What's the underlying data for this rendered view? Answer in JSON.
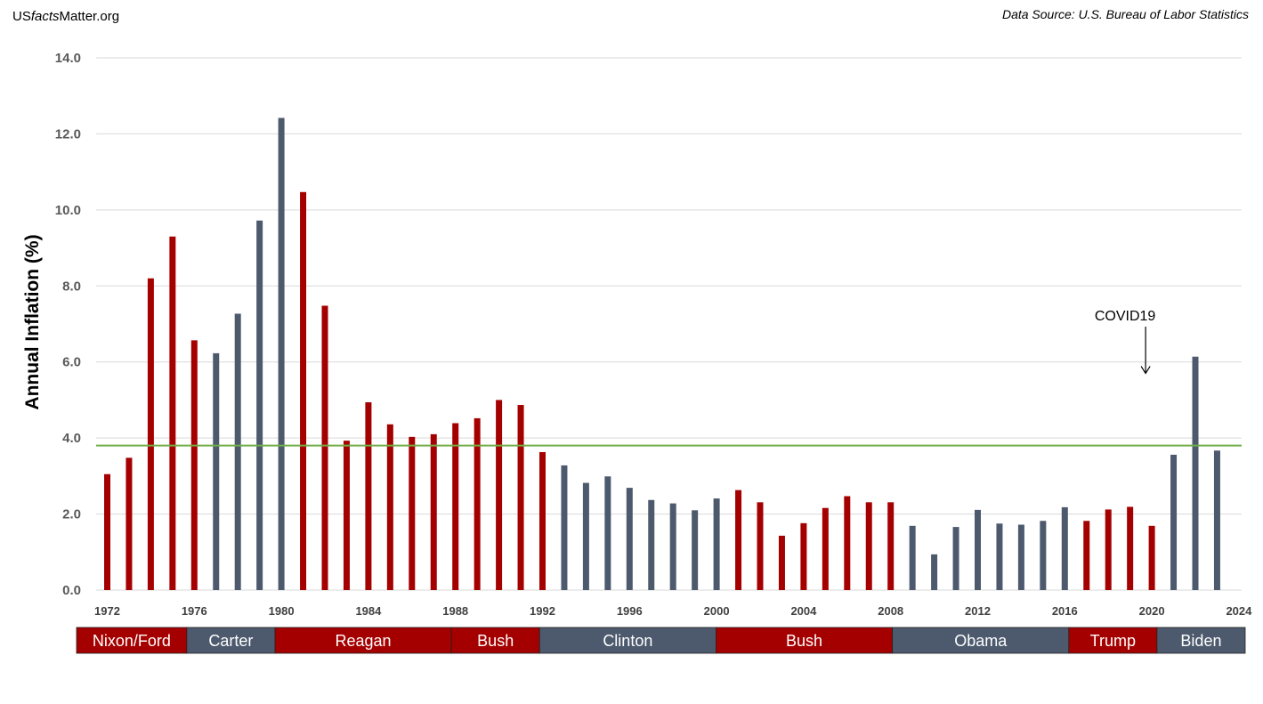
{
  "header": {
    "brand_prefix": "US",
    "brand_italic": "facts",
    "brand_suffix": "Matter.org",
    "source": "Data Source: U.S. Bureau of Labor Statistics"
  },
  "colors": {
    "republican": "#a50000",
    "democrat": "#4d5a6e",
    "reference_line": "#70ad47",
    "grid": "#d9d9d9"
  },
  "chart_data": {
    "type": "bar",
    "ylabel": "Annual Inflation (%)",
    "xlabel": "",
    "ylim": [
      0,
      14
    ],
    "y_ticks": [
      "0.0",
      "2.0",
      "4.0",
      "6.0",
      "8.0",
      "10.0",
      "12.0",
      "14.0"
    ],
    "x_ticks": [
      "1972",
      "1976",
      "1980",
      "1984",
      "1988",
      "1992",
      "1996",
      "2000",
      "2004",
      "2008",
      "2012",
      "2016",
      "2020",
      "2024"
    ],
    "grid": true,
    "categories": [
      1972,
      1973,
      1974,
      1975,
      1976,
      1977,
      1978,
      1979,
      1980,
      1981,
      1982,
      1983,
      1984,
      1985,
      1986,
      1987,
      1988,
      1989,
      1990,
      1991,
      1992,
      1993,
      1994,
      1995,
      1996,
      1997,
      1998,
      1999,
      2000,
      2001,
      2002,
      2003,
      2004,
      2005,
      2006,
      2007,
      2008,
      2009,
      2010,
      2011,
      2012,
      2013,
      2014,
      2015,
      2016,
      2017,
      2018,
      2019,
      2020,
      2021,
      2022,
      2023
    ],
    "values": [
      3.05,
      3.48,
      8.2,
      9.3,
      6.57,
      6.23,
      7.27,
      9.72,
      12.42,
      10.47,
      7.48,
      3.93,
      4.94,
      4.36,
      4.03,
      4.1,
      4.39,
      4.52,
      5.0,
      4.87,
      3.63,
      3.28,
      2.82,
      2.99,
      2.69,
      2.37,
      2.28,
      2.1,
      2.41,
      2.63,
      2.31,
      1.43,
      1.76,
      2.16,
      2.47,
      2.31,
      2.31,
      1.69,
      0.94,
      1.66,
      2.11,
      1.75,
      1.72,
      1.82,
      2.18,
      1.82,
      2.12,
      2.19,
      1.69,
      3.56,
      6.14,
      3.67
    ],
    "party": [
      "R",
      "R",
      "R",
      "R",
      "R",
      "D",
      "D",
      "D",
      "D",
      "R",
      "R",
      "R",
      "R",
      "R",
      "R",
      "R",
      "R",
      "R",
      "R",
      "R",
      "R",
      "D",
      "D",
      "D",
      "D",
      "D",
      "D",
      "D",
      "D",
      "R",
      "R",
      "R",
      "R",
      "R",
      "R",
      "R",
      "R",
      "D",
      "D",
      "D",
      "D",
      "D",
      "D",
      "D",
      "D",
      "R",
      "R",
      "R",
      "R",
      "D",
      "D",
      "D"
    ],
    "reference_line": 3.8,
    "annotation": {
      "text": "COVID19",
      "year": 2020,
      "arrow_to": 5.7
    },
    "terms": [
      {
        "name": "Nixon/Ford",
        "party": "R",
        "start": 1972,
        "end": 1976
      },
      {
        "name": "Carter",
        "party": "D",
        "start": 1977,
        "end": 1980
      },
      {
        "name": "Reagan",
        "party": "R",
        "start": 1981,
        "end": 1988
      },
      {
        "name": "Bush",
        "party": "R",
        "start": 1989,
        "end": 1992
      },
      {
        "name": "Clinton",
        "party": "D",
        "start": 1993,
        "end": 2000
      },
      {
        "name": "Bush",
        "party": "R",
        "start": 2001,
        "end": 2008
      },
      {
        "name": "Obama",
        "party": "D",
        "start": 2009,
        "end": 2016
      },
      {
        "name": "Trump",
        "party": "R",
        "start": 2017,
        "end": 2020
      },
      {
        "name": "Biden",
        "party": "D",
        "start": 2021,
        "end": 2024
      }
    ]
  }
}
